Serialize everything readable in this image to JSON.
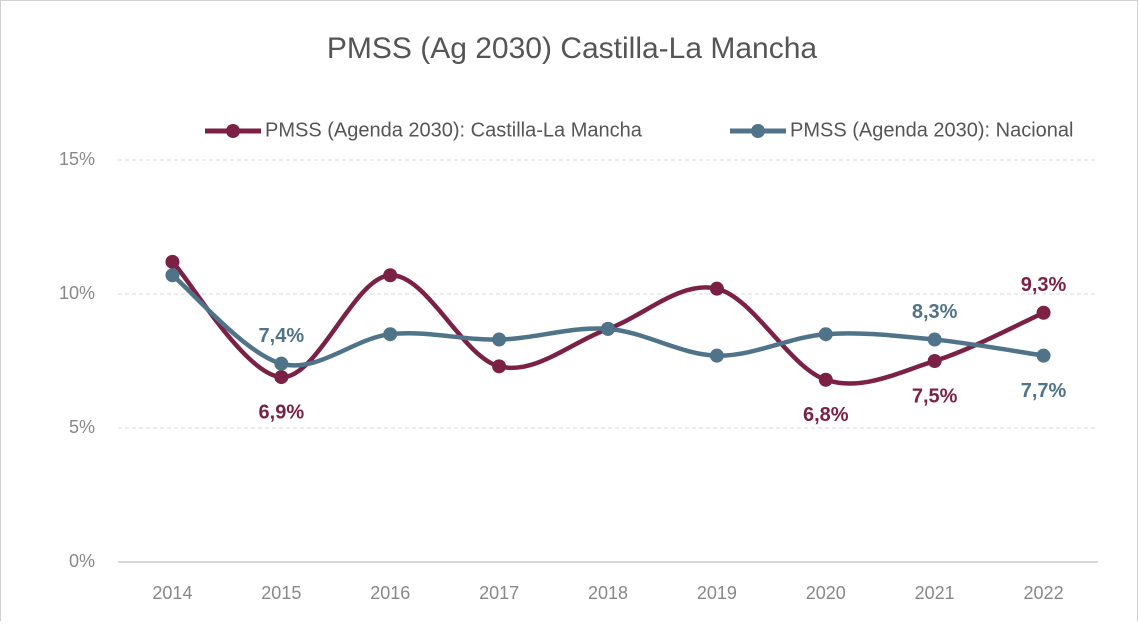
{
  "chart_data": {
    "type": "line",
    "title": "PMSS (Ag 2030) Castilla-La Mancha",
    "categories": [
      "2014",
      "2015",
      "2016",
      "2017",
      "2018",
      "2019",
      "2020",
      "2021",
      "2022"
    ],
    "series": [
      {
        "name": "PMSS (Agenda 2030): Castilla-La Mancha",
        "color": "#7b2145",
        "values": [
          11.2,
          6.9,
          10.7,
          7.3,
          8.7,
          10.2,
          6.8,
          7.5,
          9.3
        ],
        "value_labels": [
          null,
          "6,9%",
          null,
          null,
          null,
          null,
          "6,8%",
          "7,5%",
          "9,3%"
        ]
      },
      {
        "name": "PMSS (Agenda 2030): Nacional",
        "color": "#4f7389",
        "values": [
          10.7,
          7.4,
          8.5,
          8.3,
          8.7,
          7.7,
          8.5,
          8.3,
          7.7
        ],
        "value_labels": [
          null,
          "7,4%",
          null,
          null,
          null,
          null,
          null,
          "8,3%",
          "7,7%"
        ]
      }
    ],
    "ylim": [
      0,
      15
    ],
    "yticks": [
      {
        "value": 0,
        "label": "0%"
      },
      {
        "value": 5,
        "label": "5%"
      },
      {
        "value": 10,
        "label": "10%"
      },
      {
        "value": 15,
        "label": "15%"
      }
    ],
    "grid": true,
    "legend": "top"
  }
}
